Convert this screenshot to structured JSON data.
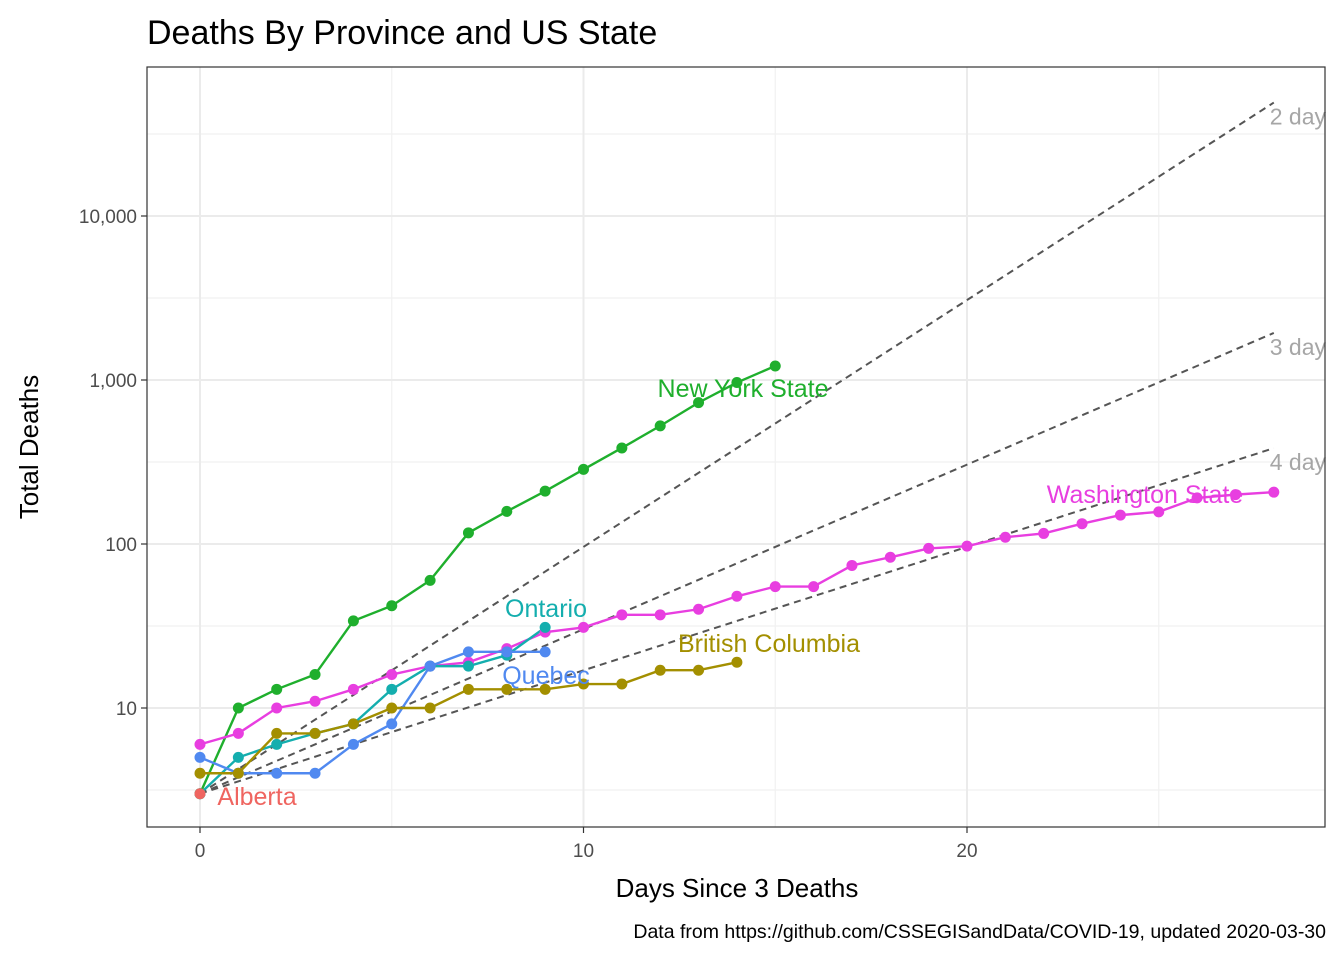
{
  "chart_data": {
    "type": "line",
    "title": "Deaths By Province and US State",
    "xlabel": "Days Since 3 Deaths",
    "ylabel": "Total Deaths",
    "caption": "Data from https://github.com/CSSEGISandData/COVID-19, updated 2020-03-30",
    "y_scale": "log10",
    "xlim": [
      -1,
      29
    ],
    "ylim": [
      2,
      70000
    ],
    "x_ticks": [
      0,
      10,
      20
    ],
    "x_tick_labels": [
      "0",
      "10",
      "20"
    ],
    "y_ticks": [
      10,
      100,
      1000,
      10000
    ],
    "y_tick_labels": [
      "10",
      "100",
      "1,000",
      "10,000"
    ],
    "grid": true,
    "legend": "none",
    "series": [
      {
        "name": "New York State",
        "color": "#1faf2d",
        "x": [
          0,
          1,
          2,
          3,
          4,
          5,
          6,
          7,
          8,
          9,
          10,
          11,
          12,
          13,
          14,
          15
        ],
        "values": [
          3,
          10,
          13,
          16,
          34,
          42,
          60,
          117,
          158,
          210,
          285,
          385,
          525,
          728,
          965,
          1218
        ]
      },
      {
        "name": "Washington State",
        "color": "#e83ee0",
        "x": [
          0,
          1,
          2,
          3,
          4,
          5,
          6,
          7,
          8,
          9,
          10,
          11,
          12,
          13,
          14,
          15,
          16,
          17,
          18,
          19,
          20,
          21,
          22,
          23,
          24,
          25,
          26,
          27,
          28
        ],
        "values": [
          6,
          7,
          10,
          11,
          13,
          16,
          18,
          19,
          23,
          29,
          31,
          37,
          37,
          40,
          48,
          55,
          55,
          74,
          83,
          94,
          97,
          110,
          116,
          133,
          150,
          157,
          191,
          200,
          207
        ]
      },
      {
        "name": "Ontario",
        "color": "#14aeae",
        "x": [
          0,
          1,
          2,
          3,
          4,
          5,
          6,
          7,
          8,
          9
        ],
        "values": [
          3,
          5,
          6,
          7,
          8,
          13,
          18,
          18,
          21,
          31
        ]
      },
      {
        "name": "Quebec",
        "color": "#5089f0",
        "x": [
          0,
          1,
          2,
          3,
          4,
          5,
          6,
          7,
          8,
          9
        ],
        "values": [
          5,
          4,
          4,
          4,
          6,
          8,
          18,
          22,
          22,
          22
        ]
      },
      {
        "name": "British Columbia",
        "color": "#a38f00",
        "x": [
          0,
          1,
          2,
          3,
          4,
          5,
          6,
          7,
          8,
          9,
          10,
          11,
          12,
          13,
          14
        ],
        "values": [
          4,
          4,
          7,
          7,
          8,
          10,
          10,
          13,
          13,
          13,
          14,
          14,
          17,
          17,
          19
        ]
      },
      {
        "name": "Alberta",
        "color": "#ef6560",
        "x": [
          0
        ],
        "values": [
          3
        ]
      }
    ],
    "reference_lines": [
      {
        "name": "2 day",
        "doubling_days": 2,
        "start": 3,
        "x_end": 28,
        "color": "#555555",
        "dash": "dashed"
      },
      {
        "name": "3 day",
        "doubling_days": 3,
        "start": 3,
        "x_end": 28,
        "color": "#555555",
        "dash": "dashed"
      },
      {
        "name": "4 day",
        "doubling_days": 4,
        "start": 3,
        "x_end": 28,
        "color": "#555555",
        "dash": "dashed"
      }
    ]
  }
}
